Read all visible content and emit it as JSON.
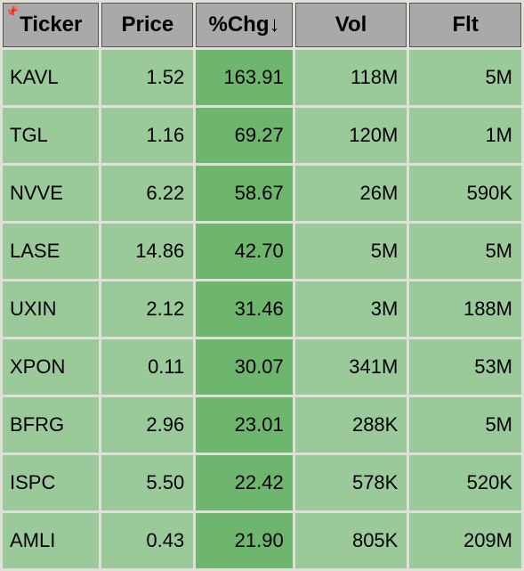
{
  "table": {
    "type": "table",
    "background_color": "#e0e0d8",
    "header_bg": "#a9a9a9",
    "header_fg": "#000000",
    "cell_bg": "#9ac99a",
    "cell_chg_bg": "#6eb56e",
    "cell_fg": "#000000",
    "header_fontsize": 24,
    "cell_fontsize": 22,
    "border_spacing": 3,
    "sort_column": "chg",
    "sort_dir": "desc",
    "pinned_column": "ticker",
    "columns": [
      {
        "key": "ticker",
        "label": "Ticker",
        "align": "left",
        "width_pct": 19,
        "pinned": true
      },
      {
        "key": "price",
        "label": "Price",
        "align": "right",
        "width_pct": 18
      },
      {
        "key": "chg",
        "label": "%Chg↓",
        "align": "center",
        "width_pct": 19,
        "sorted": true
      },
      {
        "key": "vol",
        "label": "Vol",
        "align": "center",
        "width_pct": 22
      },
      {
        "key": "flt",
        "label": "Flt",
        "align": "center",
        "width_pct": 22
      }
    ],
    "rows": [
      {
        "ticker": "KAVL",
        "price": "1.52",
        "chg": "163.91",
        "vol": "118M",
        "flt": "5M"
      },
      {
        "ticker": "TGL",
        "price": "1.16",
        "chg": "69.27",
        "vol": "120M",
        "flt": "1M"
      },
      {
        "ticker": "NVVE",
        "price": "6.22",
        "chg": "58.67",
        "vol": "26M",
        "flt": "590K"
      },
      {
        "ticker": "LASE",
        "price": "14.86",
        "chg": "42.70",
        "vol": "5M",
        "flt": "5M"
      },
      {
        "ticker": "UXIN",
        "price": "2.12",
        "chg": "31.46",
        "vol": "3M",
        "flt": "188M"
      },
      {
        "ticker": "XPON",
        "price": "0.11",
        "chg": "30.07",
        "vol": "341M",
        "flt": "53M"
      },
      {
        "ticker": "BFRG",
        "price": "2.96",
        "chg": "23.01",
        "vol": "288K",
        "flt": "5M"
      },
      {
        "ticker": "ISPC",
        "price": "5.50",
        "chg": "22.42",
        "vol": "578K",
        "flt": "520K"
      },
      {
        "ticker": "AMLI",
        "price": "0.43",
        "chg": "21.90",
        "vol": "805K",
        "flt": "209M"
      }
    ]
  }
}
